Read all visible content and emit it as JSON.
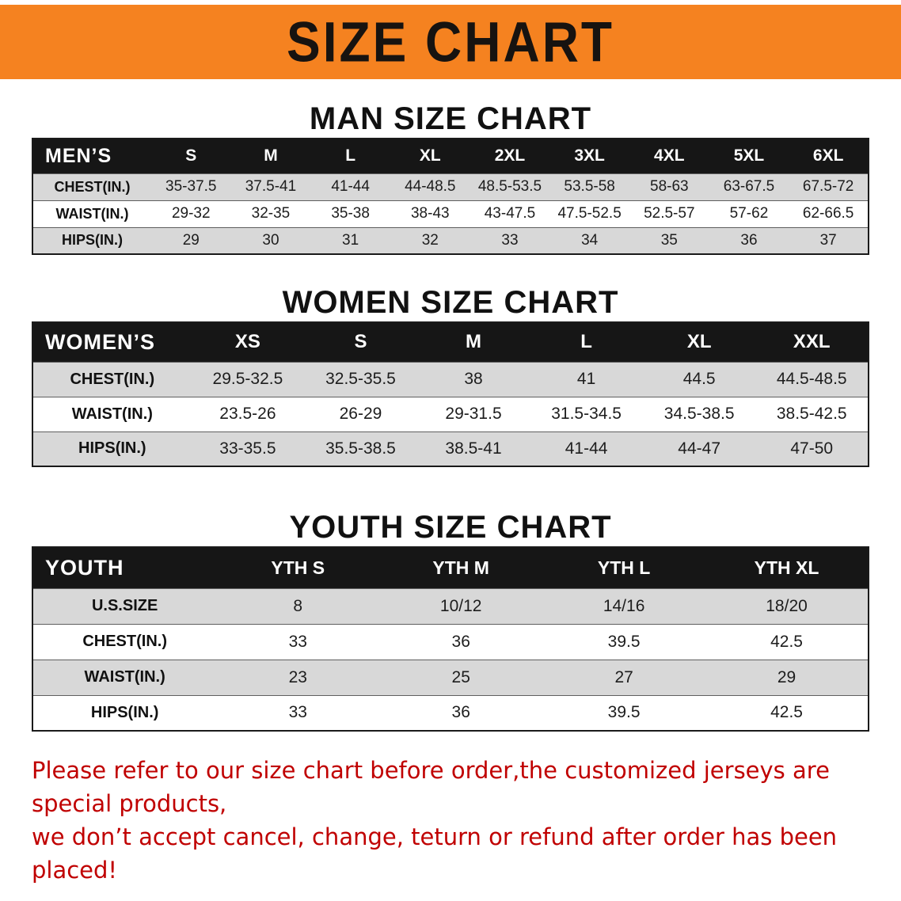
{
  "banner": {
    "title": "SIZE CHART"
  },
  "colors": {
    "banner_bg": "#f58220",
    "header_bg": "#161616",
    "row_alt": "#d8d8d8",
    "footer_color": "#c00000"
  },
  "men": {
    "heading": "MAN SIZE CHART",
    "label": "MEN’S",
    "sizes": [
      "S",
      "M",
      "L",
      "XL",
      "2XL",
      "3XL",
      "4XL",
      "5XL",
      "6XL"
    ],
    "rows": [
      {
        "label": "CHEST(IN.)",
        "values": [
          "35-37.5",
          "37.5-41",
          "41-44",
          "44-48.5",
          "48.5-53.5",
          "53.5-58",
          "58-63",
          "63-67.5",
          "67.5-72"
        ]
      },
      {
        "label": "WAIST(IN.)",
        "values": [
          "29-32",
          "32-35",
          "35-38",
          "38-43",
          "43-47.5",
          "47.5-52.5",
          "52.5-57",
          "57-62",
          "62-66.5"
        ]
      },
      {
        "label": "HIPS(IN.)",
        "values": [
          "29",
          "30",
          "31",
          "32",
          "33",
          "34",
          "35",
          "36",
          "37"
        ]
      }
    ]
  },
  "women": {
    "heading": "WOMEN SIZE CHART",
    "label": "WOMEN’S",
    "sizes": [
      "XS",
      "S",
      "M",
      "L",
      "XL",
      "XXL"
    ],
    "rows": [
      {
        "label": "CHEST(IN.)",
        "values": [
          "29.5-32.5",
          "32.5-35.5",
          "38",
          "41",
          "44.5",
          "44.5-48.5"
        ]
      },
      {
        "label": "WAIST(IN.)",
        "values": [
          "23.5-26",
          "26-29",
          "29-31.5",
          "31.5-34.5",
          "34.5-38.5",
          "38.5-42.5"
        ]
      },
      {
        "label": "HIPS(IN.)",
        "values": [
          "33-35.5",
          "35.5-38.5",
          "38.5-41",
          "41-44",
          "44-47",
          "47-50"
        ]
      }
    ]
  },
  "youth": {
    "heading": "YOUTH SIZE CHART",
    "label": "YOUTH",
    "sizes": [
      "YTH S",
      "YTH M",
      "YTH L",
      "YTH XL"
    ],
    "rows": [
      {
        "label": "U.S.SIZE",
        "values": [
          "8",
          "10/12",
          "14/16",
          "18/20"
        ]
      },
      {
        "label": "CHEST(IN.)",
        "values": [
          "33",
          "36",
          "39.5",
          "42.5"
        ]
      },
      {
        "label": "WAIST(IN.)",
        "values": [
          "23",
          "25",
          "27",
          "29"
        ]
      },
      {
        "label": "HIPS(IN.)",
        "values": [
          "33",
          "36",
          "39.5",
          "42.5"
        ]
      }
    ]
  },
  "footer": {
    "line1": "Please refer to our size chart before order,the customized jerseys are special products,",
    "line2": "we don’t accept cancel, change, teturn or refund after order has been placed!"
  }
}
